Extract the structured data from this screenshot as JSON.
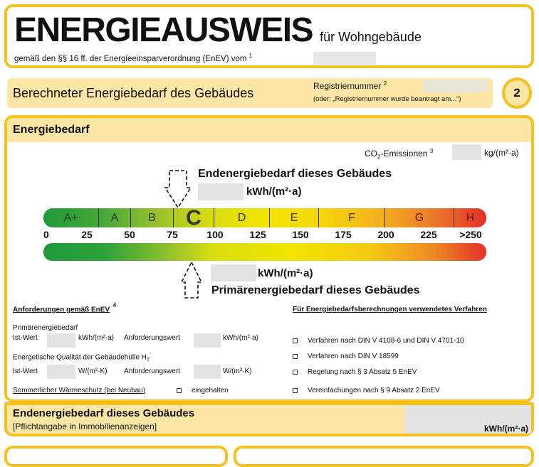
{
  "header": {
    "title": "ENERGIEAUSWEIS",
    "subtitle": "für Wohngebäude",
    "legal": "gemäß den §§ 16 ff. der Energieeinsparverordnung (EnEV) vom",
    "legal_sup": "1"
  },
  "section": {
    "title": "Berechneter Energiebedarf des Gebäudes",
    "reg_label": "Registriernummer",
    "reg_sup": "2",
    "reg_note": "(oder: „Registriernummer wurde beantragt am...“)",
    "page": "2"
  },
  "energy": {
    "heading": "Energiebedarf",
    "co2_label": "CO",
    "co2_sub": "2",
    "co2_label2": "-Emissionen",
    "co2_sup": "3",
    "co2_unit": "kg/(m²·a)",
    "end_label": "Endenergiebedarf dieses Gebäudes",
    "end_unit": "kWh/(m²·a)",
    "primary_label": "Primärenergiebedarf dieses Gebäudes",
    "primary_unit": "kWh/(m²·a)",
    "classes": [
      "A+",
      "A",
      "B",
      "C",
      "D",
      "E",
      "F",
      "G",
      "H"
    ],
    "highlighted_class": "C",
    "ticks": [
      "0",
      "25",
      "50",
      "75",
      "100",
      "125",
      "150",
      "175",
      "200",
      "225",
      ">250"
    ],
    "colors": {
      "green": "#1e9a3a",
      "yellow": "#f2e400",
      "orange": "#f3a020",
      "red": "#e3302a",
      "accent": "#f5c11c"
    }
  },
  "requirements": {
    "heading": "Anforderungen gemäß EnEV",
    "heading_sup": "4",
    "primary": "Primärenergiebedarf",
    "ist": "Ist-Wert",
    "unit_kwh": "kWh/(m²·a)",
    "anf": "Anforderungswert",
    "quality": "Energetische Qualität der Gebäudehülle H",
    "quality_sub": "T",
    "quality_sup": "'",
    "unit_w": "W/(m²·K)",
    "summer": "Sommerlicher Wärmeschutz (bei Neubau)",
    "summer_check": "eingehalten"
  },
  "methods": {
    "heading": "Für Energiebedarfsberechnungen verwendetes Verfahren",
    "items": [
      "Verfahren nach DIN V 4108-6 und DIN V 4701-10",
      "Verfahren nach DIN V 18599",
      "Regelung nach § 3 Absatz 5 EnEV",
      "Vereinfachungen nach § 9 Absatz 2 EnEV"
    ]
  },
  "footer": {
    "title": "Endenergiebedarf dieses Gebäudes",
    "note": "[Pflichtangabe in Immobilienanzeigen]",
    "unit": "kWh/(m²·a)"
  }
}
